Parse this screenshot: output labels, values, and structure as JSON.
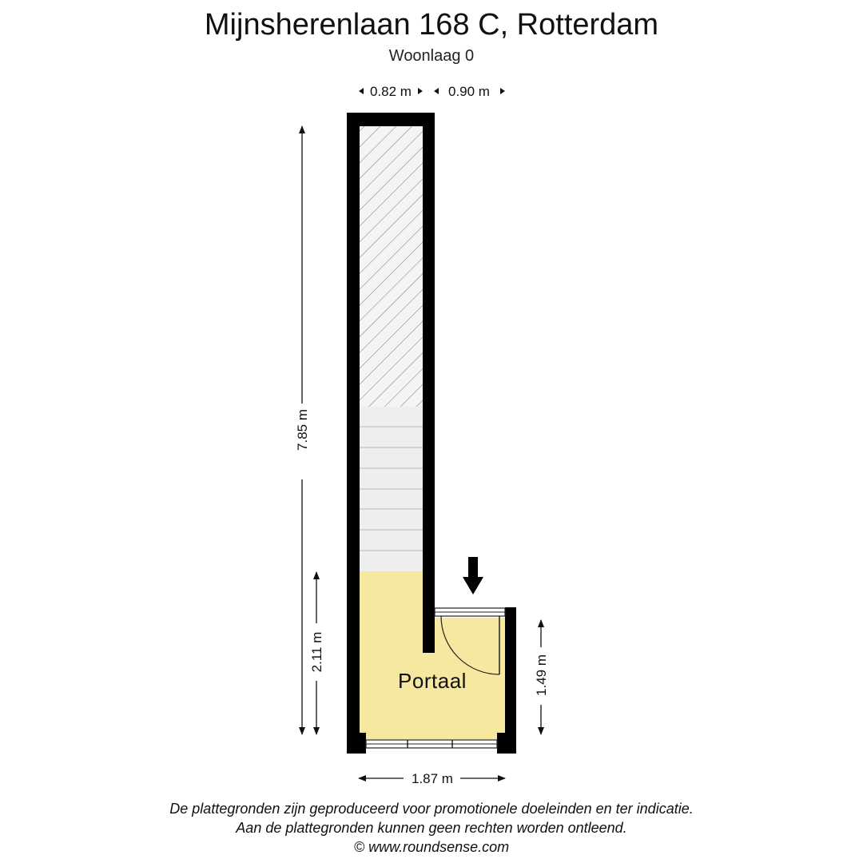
{
  "header": {
    "title": "Mijnsherenlaan 168 C, Rotterdam",
    "subtitle": "Woonlaag 0"
  },
  "dimensions": {
    "top_left": "0.82 m",
    "top_right": "0.90 m",
    "total_height": "7.85 m",
    "portaal_height": "2.11 m",
    "right_height": "1.49 m",
    "bottom_width": "1.87 m"
  },
  "rooms": {
    "portaal": "Portaal"
  },
  "colors": {
    "wall": "#000000",
    "room_fill": "#f7e8a0",
    "stair_fill": "#eeeeee",
    "void_fill": "#f2f2f2"
  },
  "footer": {
    "line1": "De plattegronden zijn geproduceerd voor promotionele doeleinden en ter indicatie.",
    "line2": "Aan de plattegronden kunnen geen rechten worden ontleend.",
    "line3": "© www.roundsense.com"
  }
}
